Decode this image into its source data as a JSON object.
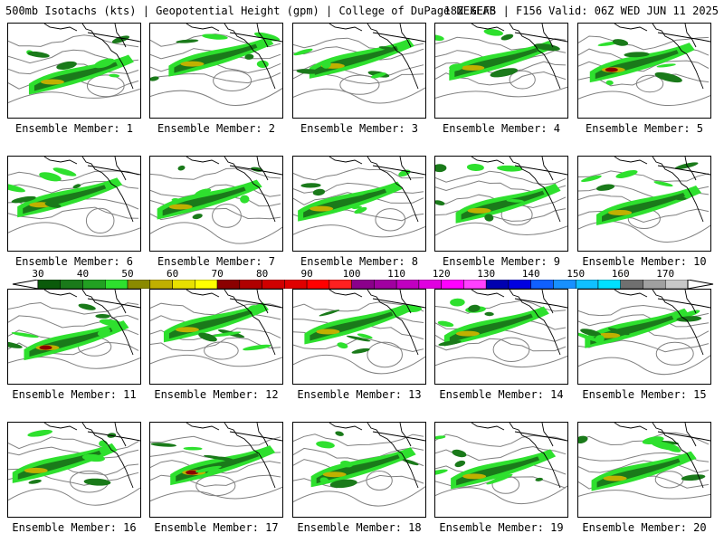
{
  "header": {
    "title_left": "500mb Isotachs (kts) | Geopotential Height (gpm) | College of DuPage NEXLAB",
    "title_right": "18Z GEFS | F156 Valid: 06Z WED JUN 11 2025"
  },
  "member_prefix": "Ensemble Member:",
  "members": [
    {
      "label": "Ensemble Member: 1"
    },
    {
      "label": "Ensemble Member: 2"
    },
    {
      "label": "Ensemble Member: 3"
    },
    {
      "label": "Ensemble Member: 4"
    },
    {
      "label": "Ensemble Member: 5"
    },
    {
      "label": "Ensemble Member: 6"
    },
    {
      "label": "Ensemble Member: 7"
    },
    {
      "label": "Ensemble Member: 8"
    },
    {
      "label": "Ensemble Member: 9"
    },
    {
      "label": "Ensemble Member: 10"
    },
    {
      "label": "Ensemble Member: 11"
    },
    {
      "label": "Ensemble Member: 12"
    },
    {
      "label": "Ensemble Member: 13"
    },
    {
      "label": "Ensemble Member: 14"
    },
    {
      "label": "Ensemble Member: 15"
    },
    {
      "label": "Ensemble Member: 16"
    },
    {
      "label": "Ensemble Member: 17"
    },
    {
      "label": "Ensemble Member: 18"
    },
    {
      "label": "Ensemble Member: 19"
    },
    {
      "label": "Ensemble Member: 20"
    }
  ],
  "colorbar": {
    "tick_labels": [
      "30",
      "40",
      "50",
      "60",
      "70",
      "80",
      "90",
      "100",
      "110",
      "120",
      "130",
      "140",
      "150",
      "160",
      "170"
    ],
    "bins": [
      {
        "min": 30,
        "max": 35,
        "color": "#0b5a0b"
      },
      {
        "min": 35,
        "max": 40,
        "color": "#1a7a1a"
      },
      {
        "min": 40,
        "max": 45,
        "color": "#22a022"
      },
      {
        "min": 45,
        "max": 50,
        "color": "#2ee02e"
      },
      {
        "min": 50,
        "max": 55,
        "color": "#8a8a00"
      },
      {
        "min": 55,
        "max": 60,
        "color": "#c0b000"
      },
      {
        "min": 60,
        "max": 65,
        "color": "#e8e000"
      },
      {
        "min": 65,
        "max": 70,
        "color": "#ffff00"
      },
      {
        "min": 70,
        "max": 75,
        "color": "#8b0000"
      },
      {
        "min": 75,
        "max": 80,
        "color": "#b00000"
      },
      {
        "min": 80,
        "max": 85,
        "color": "#d00000"
      },
      {
        "min": 85,
        "max": 90,
        "color": "#e00000"
      },
      {
        "min": 90,
        "max": 95,
        "color": "#ff0000"
      },
      {
        "min": 95,
        "max": 100,
        "color": "#ff2020"
      },
      {
        "min": 100,
        "max": 105,
        "color": "#8b008b"
      },
      {
        "min": 105,
        "max": 110,
        "color": "#a000a0"
      },
      {
        "min": 110,
        "max": 115,
        "color": "#c000c0"
      },
      {
        "min": 115,
        "max": 120,
        "color": "#e000e0"
      },
      {
        "min": 120,
        "max": 125,
        "color": "#ff00ff"
      },
      {
        "min": 125,
        "max": 130,
        "color": "#ff40ff"
      },
      {
        "min": 130,
        "max": 135,
        "color": "#0000b0"
      },
      {
        "min": 135,
        "max": 140,
        "color": "#0000e0"
      },
      {
        "min": 140,
        "max": 145,
        "color": "#1060ff"
      },
      {
        "min": 145,
        "max": 150,
        "color": "#1890ff"
      },
      {
        "min": 150,
        "max": 155,
        "color": "#10c0ff"
      },
      {
        "min": 155,
        "max": 160,
        "color": "#00e0ff"
      },
      {
        "min": 160,
        "max": 165,
        "color": "#707070"
      },
      {
        "min": 165,
        "max": 170,
        "color": "#a0a0a0"
      },
      {
        "min": 170,
        "max": 175,
        "color": "#c8c8c8"
      }
    ]
  },
  "colors": {
    "wind_light": "#2ee02e",
    "wind_mid": "#1a7a1a",
    "wind_dark": "#0b5a0b",
    "wind_yellow": "#c0b000",
    "wind_red": "#8b0000",
    "height_contour": "#808080",
    "coastline": "#000000"
  }
}
